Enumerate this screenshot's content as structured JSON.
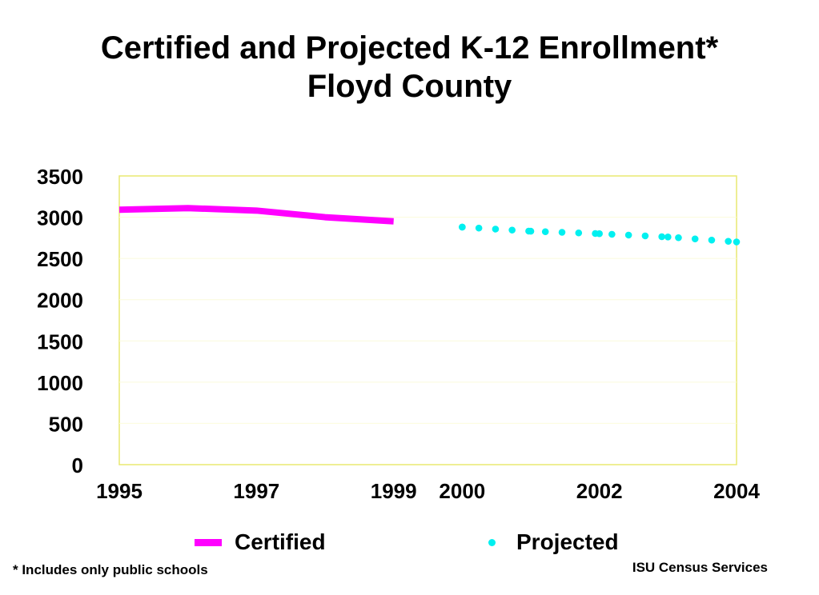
{
  "title_line1": "Certified and Projected K-12 Enrollment*",
  "title_line2": "Floyd County",
  "footnote": "* Includes only public schools",
  "credit": "ISU Census Services",
  "chart_data": {
    "type": "line",
    "ylim": [
      0,
      3500
    ],
    "xlim": [
      1995,
      2004
    ],
    "y_ticks": [
      0,
      500,
      1000,
      1500,
      2000,
      2500,
      3000,
      3500
    ],
    "x_tick_labels": [
      "1995",
      "1997",
      "1999",
      "2000",
      "2002",
      "2004"
    ],
    "grid": true,
    "legend_position": "bottom",
    "series": [
      {
        "name": "Certified",
        "style": "solid",
        "color": "#ff00ff",
        "points": [
          [
            1995,
            3090
          ],
          [
            1996,
            3110
          ],
          [
            1997,
            3080
          ],
          [
            1998,
            3000
          ],
          [
            1999,
            2950
          ]
        ]
      },
      {
        "name": "Projected",
        "style": "dotted",
        "color": "#00f0f0",
        "points": [
          [
            2000,
            2880
          ],
          [
            2001,
            2830
          ],
          [
            2002,
            2800
          ],
          [
            2003,
            2760
          ],
          [
            2004,
            2700
          ]
        ]
      }
    ]
  }
}
